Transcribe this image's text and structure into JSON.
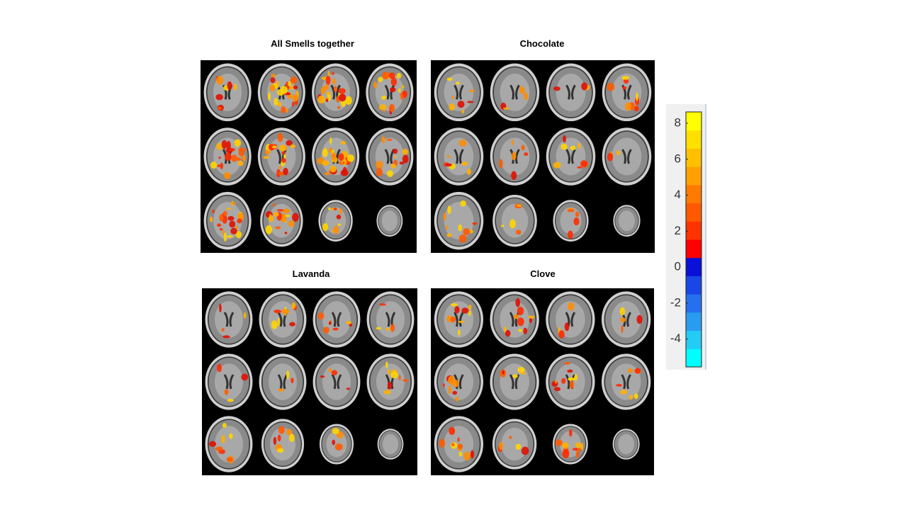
{
  "panels": [
    {
      "title": "All Smells together"
    },
    {
      "title": "Chocolate"
    },
    {
      "title": "Lavanda"
    },
    {
      "title": "Clove"
    }
  ],
  "colorbar": {
    "lim": [
      -5.55,
      8.63
    ],
    "ticks": [
      8,
      6,
      4,
      2,
      0,
      -2,
      -4
    ],
    "colors": [
      "#00ffff",
      "#22ccf5",
      "#2a9cf0",
      "#2470ee",
      "#1a46e8",
      "#0a10d8",
      "#ff0000",
      "#ff3300",
      "#ff5a00",
      "#ff7a00",
      "#ffa000",
      "#ffc000",
      "#ffe000",
      "#ffff00"
    ]
  }
}
